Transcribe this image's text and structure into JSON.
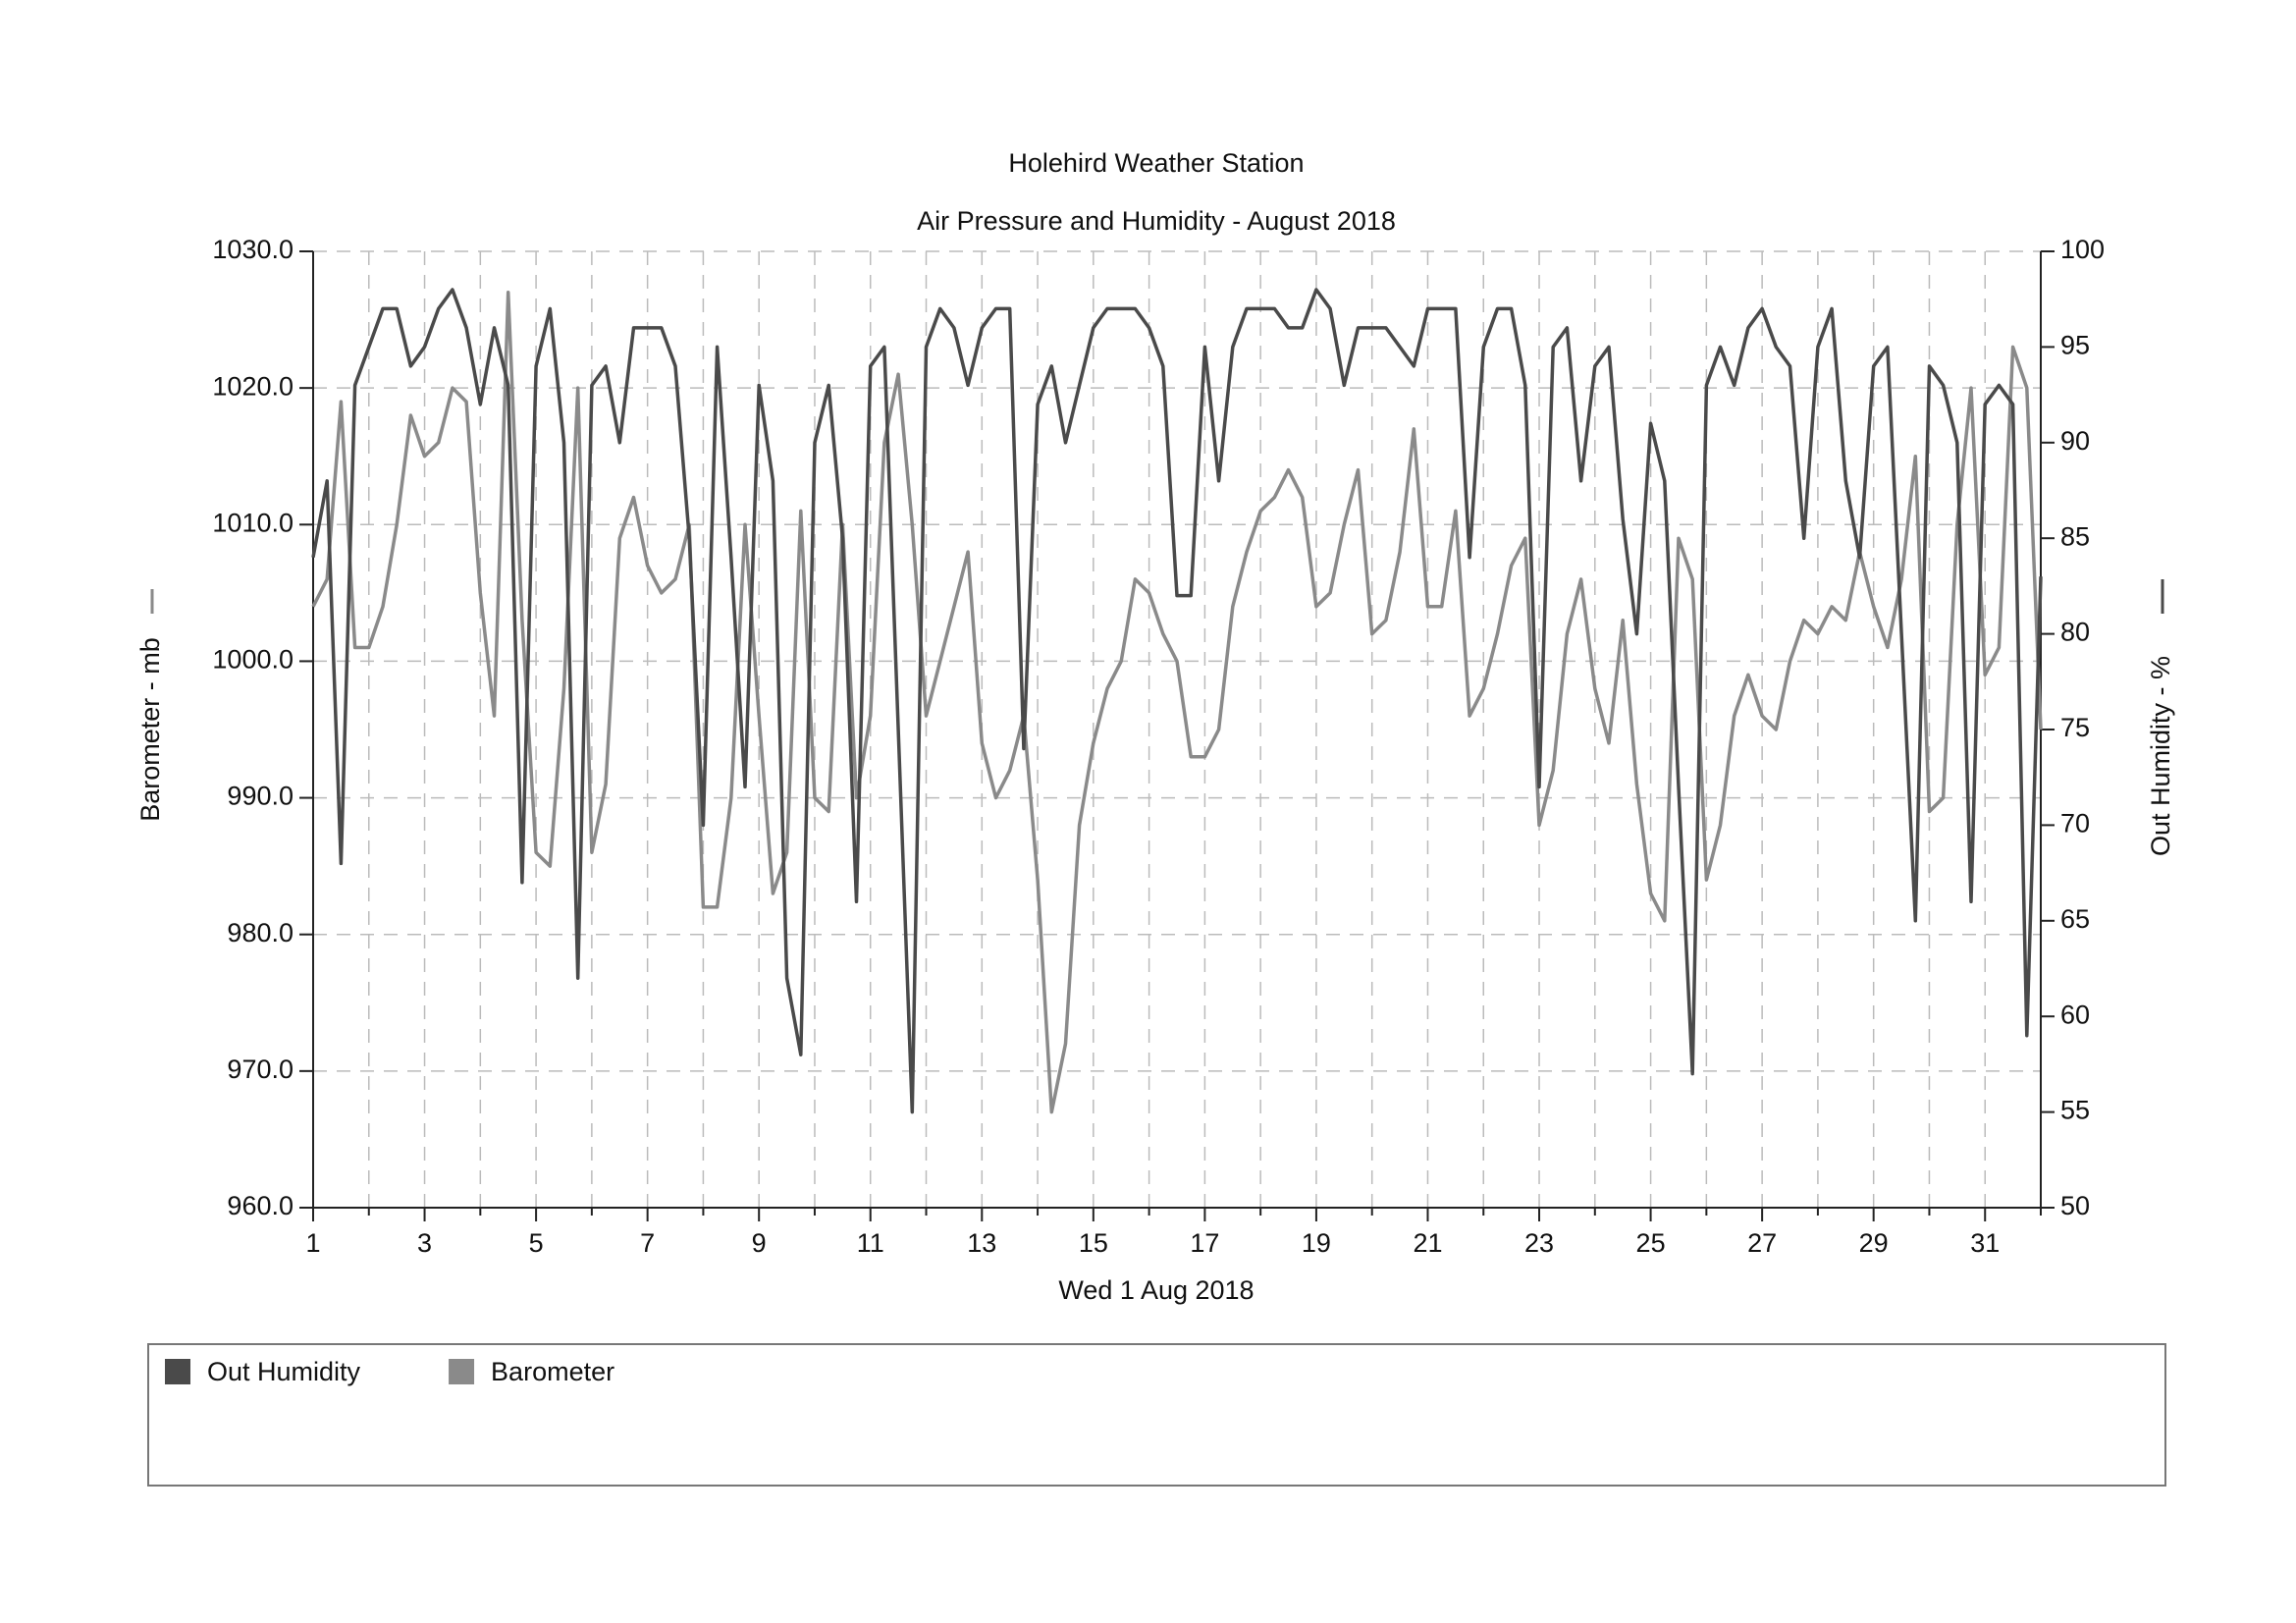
{
  "chart_data": {
    "type": "line",
    "title": "Holehird Weather Station",
    "subtitle": "Air Pressure and Humidity - August 2018",
    "x_label": "Wed 1 Aug 2018",
    "y_label": "Barometer - mb",
    "y2_label": "Out Humidity - %",
    "xlim": [
      1,
      32
    ],
    "xticks": [
      1,
      3,
      5,
      7,
      9,
      11,
      13,
      15,
      17,
      19,
      21,
      23,
      25,
      27,
      29,
      31
    ],
    "x_minor_ticks": [
      2,
      4,
      6,
      8,
      10,
      12,
      14,
      16,
      18,
      20,
      22,
      24,
      26,
      28,
      30,
      32
    ],
    "ylim": [
      960,
      1030
    ],
    "yticks": [
      {
        "value": 960,
        "label": "960.0"
      },
      {
        "value": 970,
        "label": "970.0"
      },
      {
        "value": 980,
        "label": "980.0"
      },
      {
        "value": 990,
        "label": "990.0"
      },
      {
        "value": 1000,
        "label": "1000.0"
      },
      {
        "value": 1010,
        "label": "1010.0"
      },
      {
        "value": 1020,
        "label": "1020.0"
      },
      {
        "value": 1030,
        "label": "1030.0"
      }
    ],
    "y2lim": [
      50,
      100
    ],
    "y2ticks": [
      50,
      55,
      60,
      65,
      70,
      75,
      80,
      85,
      90,
      95,
      100
    ],
    "grid": true,
    "legend": "bottom",
    "x": [
      1,
      1.25,
      1.5,
      1.75,
      2,
      2.25,
      2.5,
      2.75,
      3,
      3.25,
      3.5,
      3.75,
      4,
      4.25,
      4.5,
      4.75,
      5,
      5.25,
      5.5,
      5.75,
      6,
      6.25,
      6.5,
      6.75,
      7,
      7.25,
      7.5,
      7.75,
      8,
      8.25,
      8.5,
      8.75,
      9,
      9.25,
      9.5,
      9.75,
      10,
      10.25,
      10.5,
      10.75,
      11,
      11.25,
      11.5,
      11.75,
      12,
      12.25,
      12.5,
      12.75,
      13,
      13.25,
      13.5,
      13.75,
      14,
      14.25,
      14.5,
      14.75,
      15,
      15.25,
      15.5,
      15.75,
      16,
      16.25,
      16.5,
      16.75,
      17,
      17.25,
      17.5,
      17.75,
      18,
      18.25,
      18.5,
      18.75,
      19,
      19.25,
      19.5,
      19.75,
      20,
      20.25,
      20.5,
      20.75,
      21,
      21.25,
      21.5,
      21.75,
      22,
      22.25,
      22.5,
      22.75,
      23,
      23.25,
      23.5,
      23.75,
      24,
      24.25,
      24.5,
      24.75,
      25,
      25.25,
      25.5,
      25.75,
      26,
      26.25,
      26.5,
      26.75,
      27,
      27.25,
      27.5,
      27.75,
      28,
      28.25,
      28.5,
      28.75,
      29,
      29.25,
      29.5,
      29.75,
      30,
      30.25,
      30.5,
      30.75,
      31,
      31.25,
      31.5,
      31.75,
      32
    ],
    "series": [
      {
        "name": "Out Humidity",
        "color": "#4a4a4a",
        "axis": "y2",
        "values": [
          84,
          88,
          68,
          93,
          95,
          97,
          97,
          94,
          95,
          97,
          98,
          96,
          92,
          96,
          93,
          67,
          94,
          97,
          90,
          62,
          93,
          94,
          90,
          96,
          96,
          96,
          94,
          85,
          70,
          95,
          84,
          72,
          93,
          88,
          62,
          58,
          90,
          93,
          85,
          66,
          94,
          95,
          75,
          55,
          95,
          97,
          96,
          93,
          96,
          97,
          97,
          74,
          92,
          94,
          90,
          93,
          96,
          97,
          97,
          97,
          96,
          94,
          82,
          82,
          95,
          88,
          95,
          97,
          97,
          97,
          96,
          96,
          98,
          97,
          93,
          96,
          96,
          96,
          95,
          94,
          97,
          97,
          97,
          84,
          95,
          97,
          97,
          93,
          72,
          95,
          96,
          88,
          94,
          95,
          86,
          80,
          91,
          88,
          72,
          57,
          93,
          95,
          93,
          96,
          97,
          95,
          94,
          85,
          95,
          97,
          88,
          84,
          94,
          95,
          80,
          65,
          94,
          93,
          90,
          66,
          92,
          93,
          92,
          59,
          83
        ]
      },
      {
        "name": "Barometer",
        "color": "#8a8a8a",
        "values": [
          1004,
          1006,
          1019,
          1001,
          1001,
          1004,
          1010,
          1018,
          1015,
          1016,
          1020,
          1019,
          1005,
          996,
          1027,
          1003,
          986,
          985,
          998,
          1020,
          986,
          991,
          1009,
          1012,
          1007,
          1005,
          1006,
          1010,
          982,
          982,
          990,
          1010,
          996,
          983,
          986,
          1011,
          990,
          989,
          1010,
          990,
          996,
          1016,
          1021,
          1010,
          996,
          1000,
          1004,
          1008,
          994,
          990,
          992,
          996,
          984,
          967,
          972,
          988,
          994,
          998,
          1000,
          1006,
          1005,
          1002,
          1000,
          993,
          993,
          995,
          1004,
          1008,
          1011,
          1012,
          1014,
          1012,
          1004,
          1005,
          1010,
          1014,
          1002,
          1003,
          1008,
          1017,
          1004,
          1004,
          1011,
          996,
          998,
          1002,
          1007,
          1009,
          988,
          992,
          1002,
          1006,
          998,
          994,
          1003,
          991,
          983,
          981,
          1009,
          1006,
          984,
          988,
          996,
          999,
          996,
          995,
          1000,
          1003,
          1002,
          1004,
          1003,
          1008,
          1004,
          1001,
          1006,
          1015,
          989,
          990,
          1010,
          1020,
          999,
          1001,
          1023,
          1020,
          995
        ]
      }
    ]
  }
}
